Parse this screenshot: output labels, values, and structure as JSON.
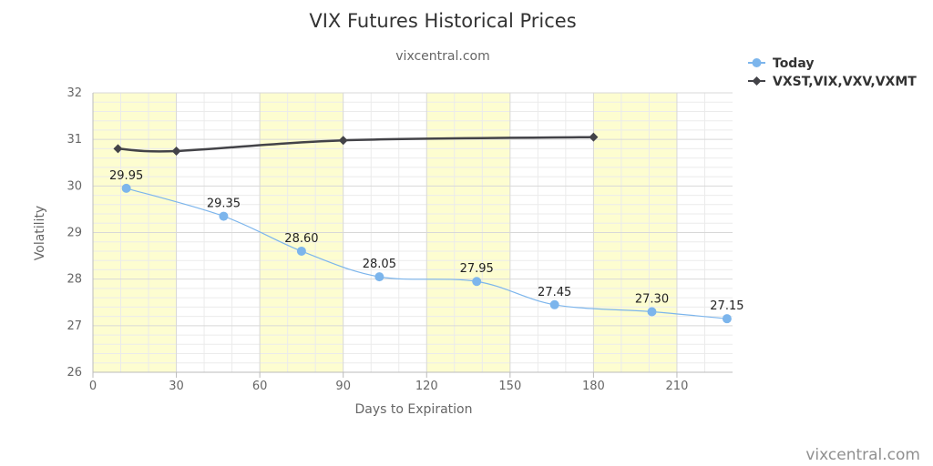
{
  "chart_data": {
    "type": "line",
    "title": "VIX Futures Historical Prices",
    "subtitle": "vixcentral.com",
    "xlabel": "Days to Expiration",
    "ylabel": "Volatility",
    "xlim": [
      0,
      230
    ],
    "ylim": [
      26,
      32
    ],
    "x_ticks": [
      0,
      30,
      60,
      90,
      120,
      150,
      180,
      210
    ],
    "y_ticks": [
      26,
      27,
      28,
      29,
      30,
      31,
      32
    ],
    "shaded_x_bands": [
      [
        0,
        30
      ],
      [
        60,
        90
      ],
      [
        120,
        150
      ],
      [
        180,
        210
      ]
    ],
    "grid": true,
    "legend_position": "top-right",
    "series": [
      {
        "name": "Today",
        "color": "#7cb5ec",
        "marker": "circle",
        "x": [
          12,
          47,
          75,
          103,
          138,
          166,
          201,
          228
        ],
        "values": [
          29.95,
          29.35,
          28.6,
          28.05,
          27.95,
          27.45,
          27.3,
          27.15
        ],
        "labels": [
          "29.95",
          "29.35",
          "28.60",
          "28.05",
          "27.95",
          "27.45",
          "27.30",
          "27.15"
        ]
      },
      {
        "name": "VXST,VIX,VXV,VXMT",
        "color": "#434348",
        "marker": "diamond",
        "x": [
          9,
          30,
          90,
          180
        ],
        "values": [
          30.8,
          30.75,
          30.98,
          31.05
        ]
      }
    ]
  },
  "credit": "vixcentral.com"
}
